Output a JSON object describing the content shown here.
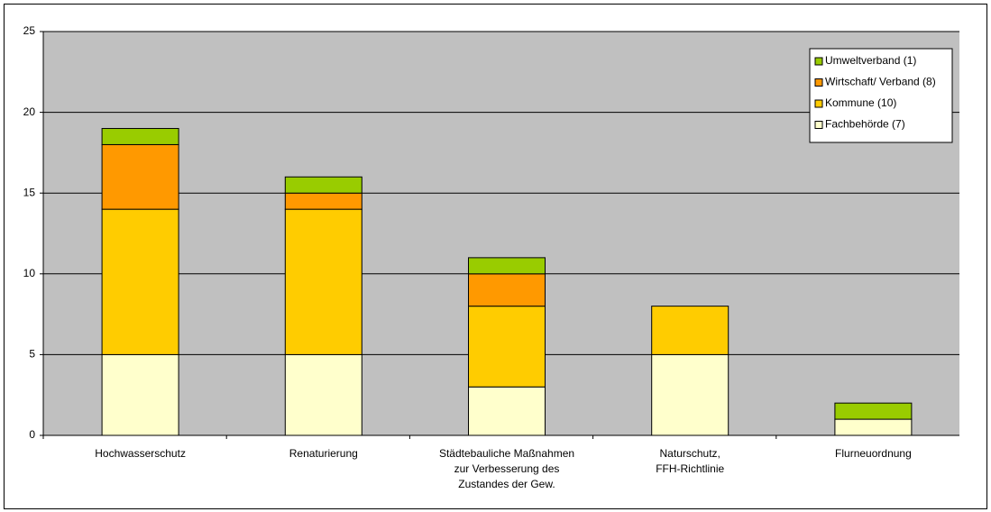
{
  "chart_data": {
    "type": "stacked_bar",
    "categories": [
      "Hochwasserschutz",
      "Renaturierung",
      "Städtebauliche Maßnahmen zur Verbesserung des Zustandes der Gew.",
      "Naturschutz, FFH-Richtlinie",
      "Flurneuordnung"
    ],
    "series": [
      {
        "name": "Fachbehörde (7)",
        "color": "#ffffcc",
        "values": [
          5,
          5,
          3,
          5,
          1
        ]
      },
      {
        "name": "Kommune (10)",
        "color": "#ffcc00",
        "values": [
          9,
          9,
          5,
          3,
          0
        ]
      },
      {
        "name": "Wirtschaft/ Verband (8)",
        "color": "#ff9900",
        "values": [
          4,
          1,
          2,
          0,
          0
        ]
      },
      {
        "name": "Umweltverband (1)",
        "color": "#99cc00",
        "values": [
          1,
          1,
          1,
          0,
          1
        ]
      }
    ],
    "ylim": [
      0,
      25
    ],
    "yticks": [
      0,
      5,
      10,
      15,
      20,
      25
    ],
    "grid": true,
    "legend": "top-right"
  }
}
